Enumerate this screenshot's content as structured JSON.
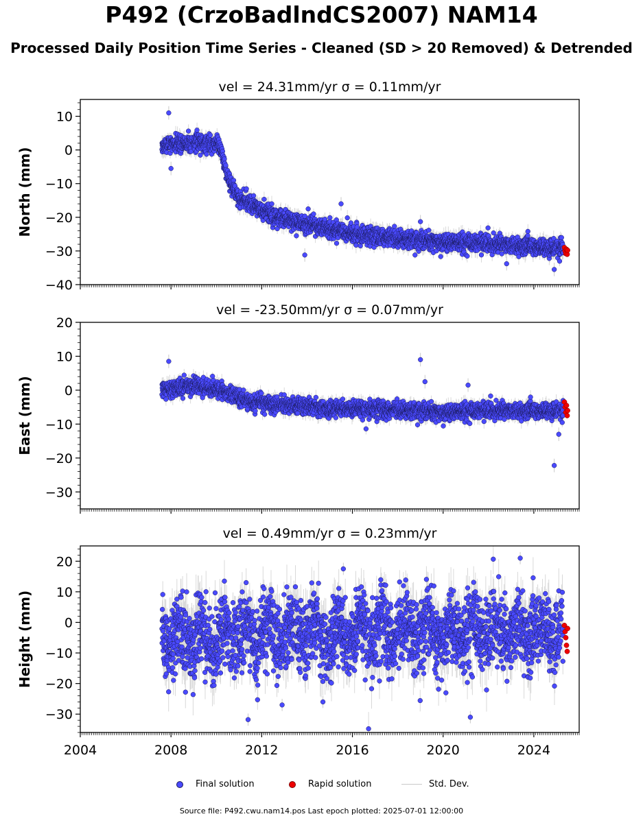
{
  "title": "P492 (CrzoBadlndCS2007) NAM14",
  "subtitle": "Processed Daily Position Time Series - Cleaned (SD > 20 Removed) & Detrended",
  "legend": {
    "final": "Final solution",
    "rapid": "Rapid solution",
    "std": "Std. Dev."
  },
  "footer": "Source file: P492.cwu.nam14.pos  Last epoch plotted: 2025-07-01 12:00:00",
  "colors": {
    "final_fill": "#4a4aff",
    "final_edge": "#1a1a5a",
    "rapid_fill": "#ee0000",
    "std_line": "#c8c8c8"
  },
  "chart_data": [
    {
      "type": "scatter",
      "component": "north",
      "title": "vel = 24.31mm/yr   σ = 0.11mm/yr",
      "ylabel": "North (mm)",
      "xlim": [
        2004,
        2026
      ],
      "ylim": [
        -40,
        15
      ],
      "yticks": [
        -40,
        -30,
        -20,
        -10,
        0,
        10
      ],
      "ytick_labels": [
        "−40",
        "−30",
        "−20",
        "−10",
        "0",
        "10"
      ],
      "xticks": [
        2004,
        2008,
        2012,
        2016,
        2020,
        2024
      ],
      "trend": [
        [
          2007.6,
          1.5
        ],
        [
          2009.0,
          2.3
        ],
        [
          2010.1,
          2.0
        ],
        [
          2010.5,
          -8.0
        ],
        [
          2011.0,
          -14.5
        ],
        [
          2012.0,
          -18.0
        ],
        [
          2013.0,
          -20.5
        ],
        [
          2014.0,
          -22.0
        ],
        [
          2015.0,
          -23.5
        ],
        [
          2016.0,
          -24.8
        ],
        [
          2017.0,
          -25.8
        ],
        [
          2018.0,
          -26.5
        ],
        [
          2019.0,
          -27.0
        ],
        [
          2020.0,
          -27.3
        ],
        [
          2021.0,
          -27.6
        ],
        [
          2022.0,
          -27.8
        ],
        [
          2023.0,
          -28.2
        ],
        [
          2024.0,
          -28.6
        ],
        [
          2025.3,
          -29.3
        ]
      ],
      "final_scatter": 1.3,
      "final_sigma": 1.6,
      "outliers": [
        [
          2007.9,
          11.0
        ],
        [
          2008.0,
          -5.5
        ],
        [
          2013.9,
          -31.2
        ],
        [
          2015.5,
          -16.0
        ],
        [
          2019.0,
          -21.3
        ],
        [
          2022.8,
          -33.8
        ],
        [
          2024.9,
          -35.5
        ]
      ],
      "rapid": [
        [
          2025.35,
          -29.0
        ],
        [
          2025.38,
          -30.0
        ],
        [
          2025.41,
          -30.8
        ],
        [
          2025.44,
          -29.5
        ],
        [
          2025.47,
          -31.0
        ],
        [
          2025.49,
          -29.8
        ]
      ]
    },
    {
      "type": "scatter",
      "component": "east",
      "title": "vel = -23.50mm/yr   σ = 0.07mm/yr",
      "ylabel": "East (mm)",
      "xlim": [
        2004,
        2026
      ],
      "ylim": [
        -35,
        20
      ],
      "yticks": [
        -30,
        -20,
        -10,
        0,
        10,
        20
      ],
      "ytick_labels": [
        "−30",
        "−20",
        "−10",
        "0",
        "10",
        "20"
      ],
      "xticks": [
        2004,
        2008,
        2012,
        2016,
        2020,
        2024
      ],
      "trend": [
        [
          2007.6,
          0.0
        ],
        [
          2008.3,
          0.8
        ],
        [
          2009.0,
          1.5
        ],
        [
          2010.0,
          0.5
        ],
        [
          2011.0,
          -2.5
        ],
        [
          2012.0,
          -4.0
        ],
        [
          2014.0,
          -5.0
        ],
        [
          2016.0,
          -5.5
        ],
        [
          2018.0,
          -6.0
        ],
        [
          2020.0,
          -6.5
        ],
        [
          2022.0,
          -6.0
        ],
        [
          2024.0,
          -6.0
        ],
        [
          2025.3,
          -6.0
        ]
      ],
      "final_scatter": 1.2,
      "final_sigma": 1.5,
      "outliers": [
        [
          2007.9,
          8.5
        ],
        [
          2019.0,
          9.0
        ],
        [
          2019.2,
          2.5
        ],
        [
          2021.1,
          1.5
        ],
        [
          2024.9,
          -22.2
        ],
        [
          2025.1,
          -13.0
        ]
      ],
      "rapid": [
        [
          2025.35,
          -3.5
        ],
        [
          2025.38,
          -5.0
        ],
        [
          2025.41,
          -6.5
        ],
        [
          2025.44,
          -4.5
        ],
        [
          2025.47,
          -7.5
        ],
        [
          2025.49,
          -6.0
        ]
      ]
    },
    {
      "type": "scatter",
      "component": "height",
      "title": "vel = 0.49mm/yr   σ = 0.23mm/yr",
      "ylabel": "Height (mm)",
      "xlim": [
        2004,
        2026
      ],
      "ylim": [
        -36,
        25
      ],
      "yticks": [
        -30,
        -20,
        -10,
        0,
        10,
        20
      ],
      "ytick_labels": [
        "−30",
        "−20",
        "−10",
        "0",
        "10",
        "20"
      ],
      "xticks": [
        2004,
        2008,
        2012,
        2016,
        2020,
        2024
      ],
      "xtick_labels": [
        "2004",
        "2008",
        "2012",
        "2016",
        "2020",
        "2024"
      ],
      "trend": [
        [
          2007.6,
          -5.0
        ],
        [
          2025.3,
          -2.5
        ]
      ],
      "final_scatter": 6.0,
      "final_sigma": 5.0,
      "outliers": [
        [
          2011.4,
          -31.8
        ],
        [
          2012.9,
          -27.0
        ],
        [
          2014.7,
          -26.0
        ],
        [
          2021.2,
          -31.0
        ],
        [
          2023.4,
          21.0
        ],
        [
          2015.6,
          17.5
        ]
      ],
      "rapid": [
        [
          2025.35,
          -1.0
        ],
        [
          2025.38,
          -3.0
        ],
        [
          2025.41,
          -5.0
        ],
        [
          2025.44,
          -7.5
        ],
        [
          2025.47,
          -9.5
        ],
        [
          2025.49,
          -2.0
        ]
      ]
    }
  ]
}
